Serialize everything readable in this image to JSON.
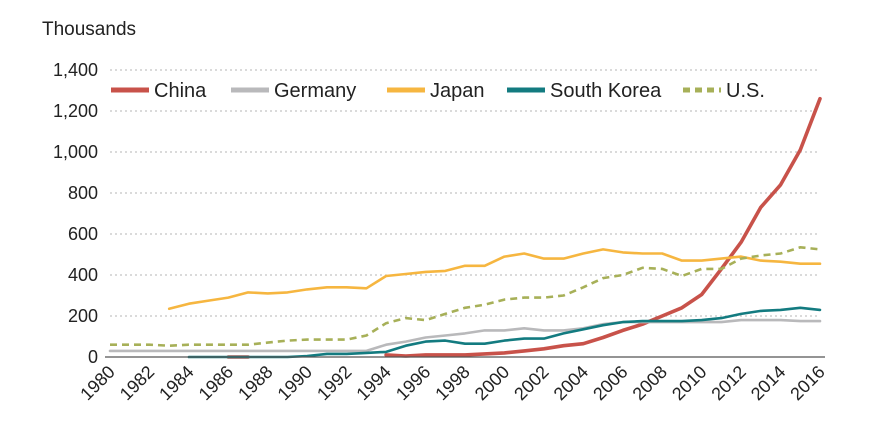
{
  "chart_data": {
    "type": "line",
    "unit_label": "Thousands",
    "xlabel": "",
    "ylabel": "Thousands",
    "x": [
      1980,
      1981,
      1982,
      1983,
      1984,
      1985,
      1986,
      1987,
      1988,
      1989,
      1990,
      1991,
      1992,
      1993,
      1994,
      1995,
      1996,
      1997,
      1998,
      1999,
      2000,
      2001,
      2002,
      2003,
      2004,
      2005,
      2006,
      2007,
      2008,
      2009,
      2010,
      2011,
      2012,
      2013,
      2014,
      2015,
      2016
    ],
    "x_ticks": [
      1980,
      1982,
      1984,
      1986,
      1988,
      1990,
      1992,
      1994,
      1996,
      1998,
      2000,
      2002,
      2004,
      2006,
      2008,
      2010,
      2012,
      2014,
      2016
    ],
    "y_ticks": [
      0,
      200,
      400,
      600,
      800,
      1000,
      1200,
      1400
    ],
    "y_tick_labels": [
      "0",
      "200",
      "400",
      "600",
      "800",
      "1,000",
      "1,200",
      "1,400"
    ],
    "xlim": [
      1980,
      2016
    ],
    "ylim": [
      0,
      1400
    ],
    "grid": "horizontal-dotted",
    "legend_position": "top",
    "series": [
      {
        "name": "China",
        "color": "#c8524a",
        "style": "solid",
        "values": [
          null,
          null,
          null,
          null,
          null,
          null,
          0,
          0,
          null,
          null,
          null,
          null,
          null,
          null,
          10,
          5,
          10,
          10,
          10,
          15,
          20,
          30,
          40,
          55,
          65,
          95,
          130,
          160,
          200,
          240,
          305,
          430,
          560,
          730,
          840,
          1010,
          1260
        ]
      },
      {
        "name": "Germany",
        "color": "#b9b9bb",
        "style": "solid",
        "values": [
          30,
          30,
          30,
          30,
          30,
          30,
          30,
          30,
          30,
          30,
          30,
          30,
          30,
          30,
          60,
          75,
          95,
          105,
          115,
          130,
          130,
          140,
          130,
          130,
          140,
          160,
          170,
          170,
          170,
          170,
          170,
          170,
          180,
          180,
          180,
          175,
          175
        ]
      },
      {
        "name": "Japan",
        "color": "#f6b640",
        "style": "solid",
        "values": [
          null,
          null,
          null,
          235,
          260,
          275,
          290,
          315,
          310,
          315,
          330,
          340,
          340,
          335,
          395,
          405,
          415,
          420,
          445,
          445,
          490,
          505,
          480,
          480,
          505,
          525,
          510,
          505,
          505,
          470,
          470,
          480,
          490,
          470,
          465,
          455,
          455
        ]
      },
      {
        "name": "South Korea",
        "color": "#137b80",
        "style": "solid",
        "values": [
          null,
          null,
          null,
          null,
          0,
          0,
          0,
          0,
          0,
          0,
          5,
          15,
          15,
          20,
          25,
          55,
          75,
          80,
          65,
          65,
          80,
          90,
          90,
          115,
          135,
          155,
          170,
          175,
          175,
          175,
          180,
          190,
          210,
          225,
          230,
          240,
          230
        ]
      },
      {
        "name": "U.S.",
        "color": "#a7b058",
        "style": "dashed",
        "values": [
          60,
          60,
          60,
          55,
          60,
          60,
          60,
          60,
          70,
          80,
          85,
          85,
          85,
          105,
          165,
          190,
          180,
          210,
          240,
          255,
          280,
          290,
          290,
          300,
          340,
          385,
          400,
          435,
          430,
          395,
          430,
          430,
          480,
          495,
          505,
          535,
          525
        ]
      }
    ]
  }
}
